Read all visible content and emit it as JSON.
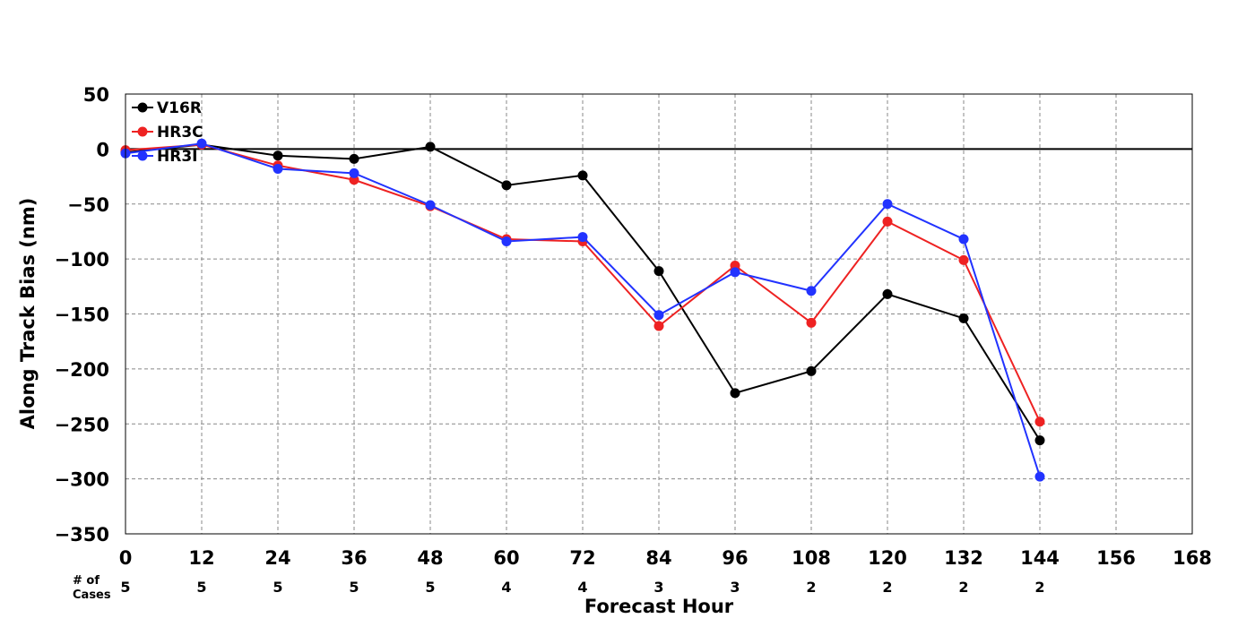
{
  "chart_data": {
    "type": "line",
    "xlabel": "Forecast Hour",
    "ylabel": "Along Track Bias (nm)",
    "xlim": [
      0,
      168
    ],
    "ylim": [
      -350,
      50
    ],
    "x_ticks": [
      0,
      12,
      24,
      36,
      48,
      60,
      72,
      84,
      96,
      108,
      120,
      132,
      144,
      156,
      168
    ],
    "y_ticks": [
      50,
      0,
      -50,
      -100,
      -150,
      -200,
      -250,
      -300,
      -350
    ],
    "y_tick_labels": [
      "50",
      "0",
      "−50",
      "−100",
      "−150",
      "−200",
      "−250",
      "−300",
      "−350"
    ],
    "grid": true,
    "grid_style": "dashed",
    "zero_line": true,
    "legend_position": "top-left",
    "series": [
      {
        "name": "V16R",
        "color": "#000000",
        "x": [
          0,
          12,
          24,
          36,
          48,
          60,
          72,
          84,
          96,
          108,
          120,
          132,
          144
        ],
        "values": [
          -3,
          4,
          -6,
          -9,
          2,
          -33,
          -24,
          -111,
          -222,
          -202,
          -132,
          -154,
          -265
        ]
      },
      {
        "name": "HR3C",
        "color": "#ee2222",
        "x": [
          0,
          12,
          24,
          36,
          48,
          60,
          72,
          84,
          96,
          108,
          120,
          132,
          144
        ],
        "values": [
          -1,
          4,
          -15,
          -28,
          -52,
          -82,
          -84,
          -161,
          -106,
          -158,
          -66,
          -101,
          -248
        ]
      },
      {
        "name": "HR3I",
        "color": "#2233ff",
        "x": [
          0,
          12,
          24,
          36,
          48,
          60,
          72,
          84,
          96,
          108,
          120,
          132,
          144
        ],
        "values": [
          -4,
          5,
          -18,
          -22,
          -51,
          -84,
          -80,
          -151,
          -112,
          -129,
          -50,
          -82,
          -298
        ]
      }
    ],
    "cases": {
      "label": "# of\nCases",
      "x": [
        0,
        12,
        24,
        36,
        48,
        60,
        72,
        84,
        96,
        108,
        120,
        132,
        144
      ],
      "counts": [
        "5",
        "5",
        "5",
        "5",
        "5",
        "4",
        "4",
        "3",
        "3",
        "2",
        "2",
        "2",
        "2"
      ]
    }
  }
}
